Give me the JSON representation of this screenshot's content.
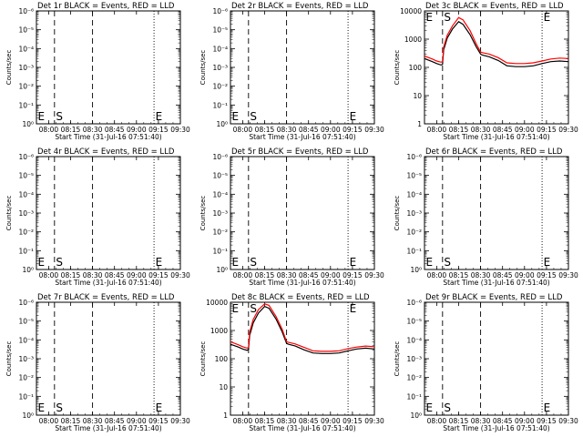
{
  "chart_data": [
    {
      "id": "1r",
      "type": "line",
      "title": "Det 1r BLACK = Events, RED = LLD",
      "xlabel": "Start Time (31-Jul-16 07:51:40)",
      "ylabel": "Counts/sec",
      "yscale": "log",
      "ytick_labels": [
        "10⁰",
        "10⁻¹",
        "10⁻²",
        "10⁻³",
        "10⁻⁴",
        "10⁻⁵",
        "10⁻⁶"
      ],
      "xtick_labels": [
        "08:00",
        "08:15",
        "08:30",
        "08:45",
        "09:00",
        "09:15",
        "09:30"
      ],
      "xlim": [
        7.8611,
        9.5
      ],
      "markers": [
        {
          "label": "E",
          "x": 7.8611,
          "style": "dotted"
        },
        {
          "label": "S",
          "x": 8.0667,
          "style": "dashed"
        },
        {
          "label": "",
          "x": 8.5,
          "style": "dashed"
        },
        {
          "label": "E",
          "x": 9.2,
          "style": "dotted"
        }
      ],
      "series": []
    },
    {
      "id": "2r",
      "type": "line",
      "title": "Det 2r BLACK = Events, RED = LLD",
      "xlabel": "Start Time (31-Jul-16 07:51:40)",
      "ylabel": "Counts/sec",
      "yscale": "log",
      "ytick_labels": [
        "10⁰",
        "10⁻¹",
        "10⁻²",
        "10⁻³",
        "10⁻⁴",
        "10⁻⁵",
        "10⁻⁶"
      ],
      "xtick_labels": [
        "08:00",
        "08:15",
        "08:30",
        "08:45",
        "09:00",
        "09:15",
        "09:30"
      ],
      "xlim": [
        7.8611,
        9.5
      ],
      "markers": [
        {
          "label": "E",
          "x": 7.8611,
          "style": "dotted"
        },
        {
          "label": "S",
          "x": 8.0667,
          "style": "dashed"
        },
        {
          "label": "",
          "x": 8.5,
          "style": "dashed"
        },
        {
          "label": "E",
          "x": 9.2,
          "style": "dotted"
        }
      ],
      "series": []
    },
    {
      "id": "3c",
      "type": "line",
      "title": "Det 3c BLACK = Events, RED = LLD",
      "xlabel": "Start Time (31-Jul-16 07:51:40)",
      "ylabel": "Counts/sec",
      "yscale": "log",
      "ytick_labels": [
        "1",
        "10",
        "100",
        "1000",
        "10000"
      ],
      "xtick_labels": [
        "08:00",
        "08:15",
        "08:30",
        "08:45",
        "09:00",
        "09:15",
        "09:30"
      ],
      "xlim": [
        7.8611,
        9.5
      ],
      "ylim": [
        1,
        15000
      ],
      "markers": [
        {
          "label": "E",
          "x": 7.8611,
          "style": "dotted"
        },
        {
          "label": "S",
          "x": 8.0667,
          "style": "dashed"
        },
        {
          "label": "",
          "x": 8.5,
          "style": "dashed"
        },
        {
          "label": "E",
          "x": 9.2,
          "style": "dotted"
        }
      ],
      "series": [
        {
          "color": "#000000",
          "x": [
            7.8611,
            7.95,
            8.0,
            8.05,
            8.0667,
            8.08,
            8.12,
            8.18,
            8.25,
            8.3,
            8.38,
            8.45,
            8.5,
            8.52,
            8.6,
            8.7,
            8.8,
            8.9,
            9.0,
            9.1,
            9.2,
            9.3,
            9.4,
            9.5
          ],
          "y": [
            260,
            200,
            170,
            150,
            160,
            550,
            1500,
            3200,
            6000,
            4800,
            2000,
            700,
            380,
            350,
            300,
            220,
            140,
            130,
            130,
            140,
            170,
            200,
            210,
            200
          ]
        },
        {
          "color": "#ff0000",
          "x": [
            7.8611,
            7.95,
            8.0,
            8.05,
            8.0667,
            8.08,
            8.12,
            8.18,
            8.25,
            8.3,
            8.38,
            8.45,
            8.5,
            8.52,
            8.6,
            8.7,
            8.8,
            8.9,
            9.0,
            9.1,
            9.2,
            9.3,
            9.4,
            9.5
          ],
          "y": [
            320,
            250,
            210,
            190,
            200,
            700,
            1900,
            4200,
            8500,
            7000,
            2800,
            900,
            450,
            430,
            380,
            280,
            180,
            170,
            170,
            180,
            210,
            250,
            270,
            260
          ]
        }
      ]
    },
    {
      "id": "4r",
      "type": "line",
      "title": "Det 4r BLACK = Events, RED = LLD",
      "xlabel": "Start Time (31-Jul-16 07:51:40)",
      "ylabel": "Counts/sec",
      "yscale": "log",
      "ytick_labels": [
        "10⁰",
        "10⁻¹",
        "10⁻²",
        "10⁻³",
        "10⁻⁴",
        "10⁻⁵",
        "10⁻⁶"
      ],
      "xtick_labels": [
        "08:00",
        "08:15",
        "08:30",
        "08:45",
        "09:00",
        "09:15",
        "09:30"
      ],
      "xlim": [
        7.8611,
        9.5
      ],
      "markers": [
        {
          "label": "E",
          "x": 7.8611,
          "style": "dotted"
        },
        {
          "label": "S",
          "x": 8.0667,
          "style": "dashed"
        },
        {
          "label": "",
          "x": 8.5,
          "style": "dashed"
        },
        {
          "label": "E",
          "x": 9.2,
          "style": "dotted"
        }
      ],
      "series": []
    },
    {
      "id": "5r",
      "type": "line",
      "title": "Det 5r BLACK = Events, RED = LLD",
      "xlabel": "Start Time (31-Jul-16 07:51:40)",
      "ylabel": "Counts/sec",
      "yscale": "log",
      "ytick_labels": [
        "10⁰",
        "10⁻¹",
        "10⁻²",
        "10⁻³",
        "10⁻⁴",
        "10⁻⁵",
        "10⁻⁶"
      ],
      "xtick_labels": [
        "08:00",
        "08:15",
        "08:30",
        "08:45",
        "09:00",
        "09:15",
        "09:30"
      ],
      "xlim": [
        7.8611,
        9.5
      ],
      "markers": [
        {
          "label": "E",
          "x": 7.8611,
          "style": "dotted"
        },
        {
          "label": "S",
          "x": 8.0667,
          "style": "dashed"
        },
        {
          "label": "",
          "x": 8.5,
          "style": "dashed"
        },
        {
          "label": "E",
          "x": 9.2,
          "style": "dotted"
        }
      ],
      "series": []
    },
    {
      "id": "6r",
      "type": "line",
      "title": "Det 6r BLACK = Events, RED = LLD",
      "xlabel": "Start Time (31-Jul-16 07:51:40)",
      "ylabel": "Counts/sec",
      "yscale": "log",
      "ytick_labels": [
        "10⁰",
        "10⁻¹",
        "10⁻²",
        "10⁻³",
        "10⁻⁴",
        "10⁻⁵",
        "10⁻⁶"
      ],
      "xtick_labels": [
        "08:00",
        "08:15",
        "08:30",
        "08:45",
        "09:00",
        "09:15",
        "09:30"
      ],
      "xlim": [
        7.8611,
        9.5
      ],
      "markers": [
        {
          "label": "E",
          "x": 7.8611,
          "style": "dotted"
        },
        {
          "label": "S",
          "x": 8.0667,
          "style": "dashed"
        },
        {
          "label": "",
          "x": 8.5,
          "style": "dashed"
        },
        {
          "label": "E",
          "x": 9.2,
          "style": "dotted"
        }
      ],
      "series": []
    },
    {
      "id": "7r",
      "type": "line",
      "title": "Det 7r BLACK = Events, RED = LLD",
      "xlabel": "Start Time (31-Jul-16 07:51:40)",
      "ylabel": "Counts/sec",
      "yscale": "log",
      "ytick_labels": [
        "10⁰",
        "10⁻¹",
        "10⁻²",
        "10⁻³",
        "10⁻⁴",
        "10⁻⁵",
        "10⁻⁶"
      ],
      "xtick_labels": [
        "08:00",
        "08:15",
        "08:30",
        "08:45",
        "09:00",
        "09:15",
        "09:30"
      ],
      "xlim": [
        7.8611,
        9.5
      ],
      "markers": [
        {
          "label": "E",
          "x": 7.8611,
          "style": "dotted"
        },
        {
          "label": "S",
          "x": 8.0667,
          "style": "dashed"
        },
        {
          "label": "",
          "x": 8.5,
          "style": "dashed"
        },
        {
          "label": "E",
          "x": 9.2,
          "style": "dotted"
        }
      ],
      "series": []
    },
    {
      "id": "8c",
      "type": "line",
      "title": "Det 8c BLACK = Events, RED = LLD",
      "xlabel": "Start Time (31-Jul-16 07:51:40)",
      "ylabel": "Counts/sec",
      "yscale": "log",
      "ytick_labels": [
        "1",
        "10",
        "100",
        "1000",
        "10000"
      ],
      "xtick_labels": [
        "08:00",
        "08:15",
        "08:30",
        "08:45",
        "09:00",
        "09:15",
        "09:30"
      ],
      "xlim": [
        7.8611,
        9.5
      ],
      "ylim": [
        1,
        15000
      ],
      "markers": [
        {
          "label": "E",
          "x": 7.8611,
          "style": "dotted"
        },
        {
          "label": "S",
          "x": 8.0667,
          "style": "dashed"
        },
        {
          "label": "",
          "x": 8.5,
          "style": "dashed"
        },
        {
          "label": "E",
          "x": 9.2,
          "style": "dotted"
        }
      ],
      "series": [
        {
          "color": "#000000",
          "x": [
            7.8611,
            7.95,
            8.0,
            8.05,
            8.0667,
            8.08,
            8.12,
            8.18,
            8.25,
            8.3,
            8.38,
            8.45,
            8.5,
            8.52,
            8.6,
            8.7,
            8.8,
            8.9,
            9.0,
            9.1,
            9.2,
            9.3,
            9.4,
            9.5
          ],
          "y": [
            420,
            330,
            280,
            250,
            270,
            900,
            2600,
            6000,
            10500,
            9000,
            3600,
            1200,
            450,
            420,
            360,
            260,
            200,
            190,
            190,
            200,
            240,
            280,
            300,
            280
          ]
        },
        {
          "color": "#ff0000",
          "x": [
            7.8611,
            7.95,
            8.0,
            8.05,
            8.0667,
            8.08,
            8.12,
            8.18,
            8.25,
            8.3,
            8.38,
            8.45,
            8.5,
            8.52,
            8.6,
            8.7,
            8.8,
            8.9,
            9.0,
            9.1,
            9.2,
            9.3,
            9.4,
            9.5
          ],
          "y": [
            520,
            400,
            340,
            300,
            320,
            1200,
            3500,
            8000,
            13000,
            11500,
            4500,
            1500,
            520,
            500,
            430,
            320,
            240,
            230,
            230,
            240,
            290,
            330,
            360,
            340
          ]
        }
      ]
    },
    {
      "id": "9r",
      "type": "line",
      "title": "Det 9r BLACK = Events, RED = LLD",
      "xlabel": "Start Time (31-Jul-16 07:51:40)",
      "ylabel": "Counts/sec",
      "yscale": "log",
      "ytick_labels": [
        "10⁰",
        "10⁻¹",
        "10⁻²",
        "10⁻³",
        "10⁻⁴",
        "10⁻⁵",
        "10⁻⁶"
      ],
      "xtick_labels": [
        "08:00",
        "08:15",
        "08:30",
        "08:45",
        "09:00",
        "09:15",
        "09:30"
      ],
      "xlim": [
        7.8611,
        9.5
      ],
      "markers": [
        {
          "label": "E",
          "x": 7.8611,
          "style": "dotted"
        },
        {
          "label": "S",
          "x": 8.0667,
          "style": "dashed"
        },
        {
          "label": "",
          "x": 8.5,
          "style": "dashed"
        },
        {
          "label": "E",
          "x": 9.2,
          "style": "dotted"
        }
      ],
      "series": []
    }
  ]
}
